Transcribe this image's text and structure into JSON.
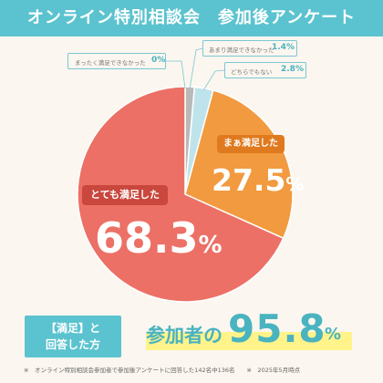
{
  "header": {
    "title": "オンライン特別相談会　参加後アンケート"
  },
  "chart_data": {
    "type": "pie",
    "title": "オンライン特別相談会　参加後アンケート",
    "categories": [
      "とても満足した",
      "まぁ満足した",
      "どちらでもない",
      "あまり満足できなかった",
      "まったく満足できなかった"
    ],
    "values": [
      68.3,
      27.5,
      2.8,
      1.4,
      0
    ],
    "value_labels": [
      "68.3%",
      "27.5%",
      "2.8%",
      "1.4%",
      "0%"
    ],
    "colors": [
      "#ec7065",
      "#f29a3f",
      "#bfe3ea",
      "#b9b9b9",
      "#d9d9d9"
    ]
  },
  "slices": {
    "very_satisfied": {
      "label": "とても満足した",
      "pct_num": "68.3",
      "pct_unit": "%"
    },
    "satisfied": {
      "label": "まぁ満足した",
      "pct_num": "27.5",
      "pct_unit": "%"
    }
  },
  "callouts": {
    "neutral": {
      "label": "どちらでもない",
      "pct": "2.8%"
    },
    "not_very": {
      "label": "あまり満足できなかった",
      "pct": "1.4%"
    },
    "not_at_all": {
      "label": "まったく満足できなかった",
      "pct": "0%"
    }
  },
  "summary": {
    "box_line1": "【満足】と",
    "box_line2": "回答した方",
    "prefix": "参加者の",
    "value": "95.8",
    "unit": "%"
  },
  "footnote": "※　オンライン特別相談会参加者で参加後アンケートに回答した142名中136名　　※　2025年5月時点"
}
